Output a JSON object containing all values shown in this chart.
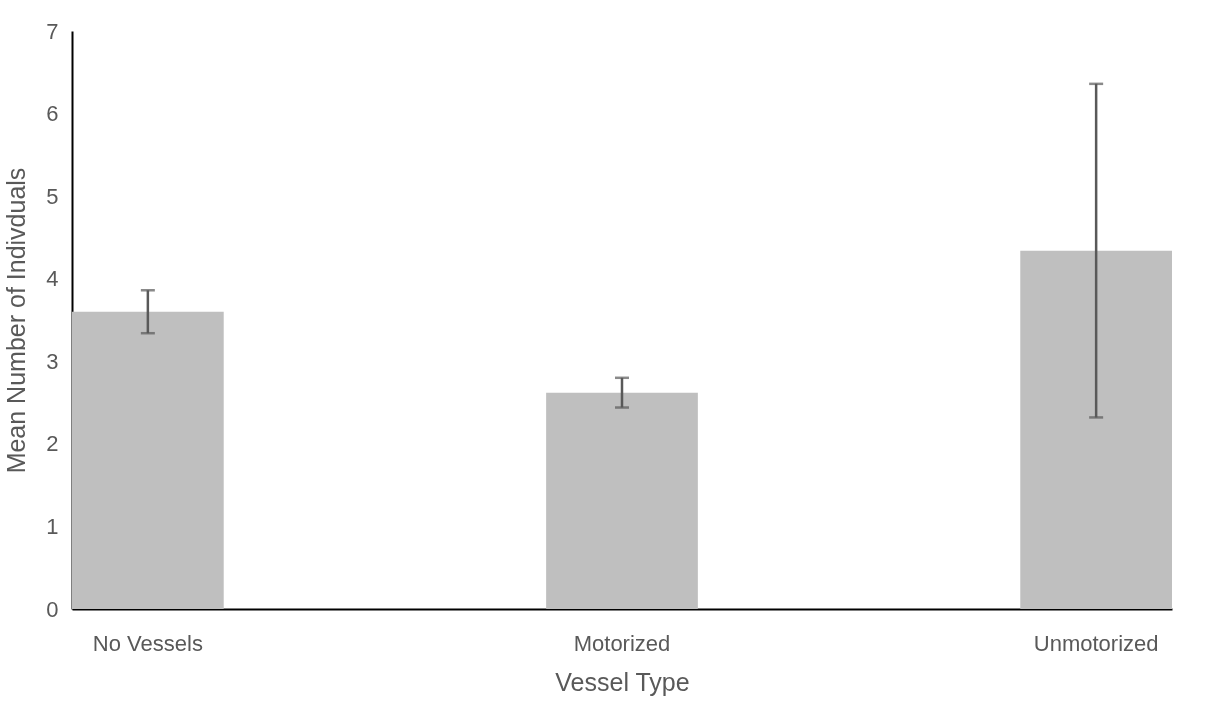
{
  "chart_data": {
    "type": "bar",
    "xlabel": "Vessel Type",
    "ylabel": "Mean Number of Indivduals",
    "categories": [
      "No Vessels",
      "Motorized",
      "Unmotorized"
    ],
    "values": [
      3.6,
      2.62,
      4.34
    ],
    "errors": [
      0.26,
      0.18,
      2.02
    ],
    "color": "#bfbfbf",
    "ylim": [
      0,
      7
    ],
    "yticks": [
      0,
      1,
      2,
      3,
      4,
      5,
      6,
      7
    ],
    "grid": false
  }
}
